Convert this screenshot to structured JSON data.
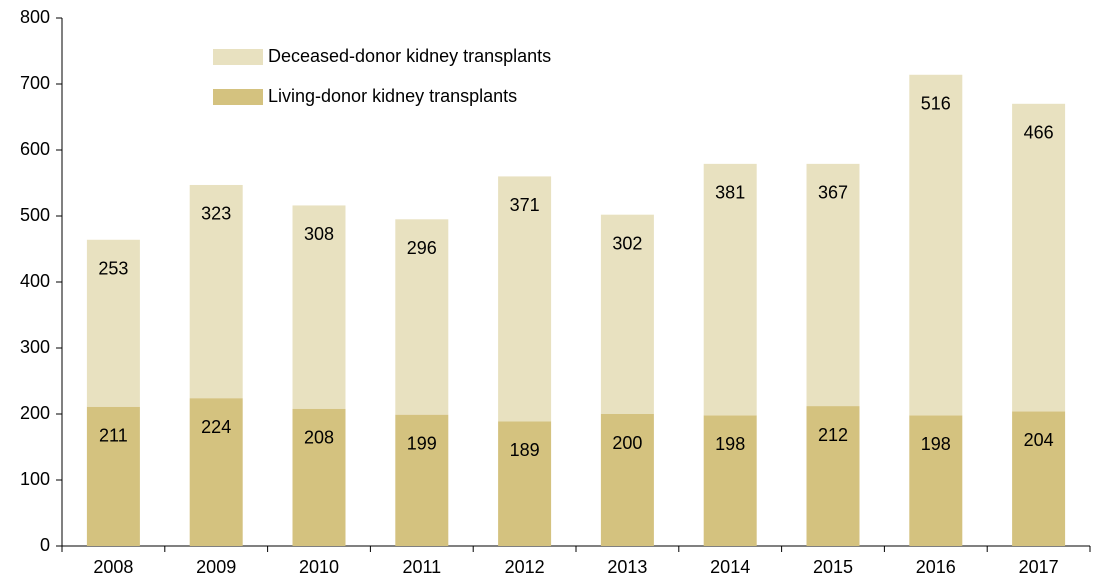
{
  "chart_data": {
    "type": "stacked_bar",
    "categories": [
      "2008",
      "2009",
      "2010",
      "2011",
      "2012",
      "2013",
      "2014",
      "2015",
      "2016",
      "2017"
    ],
    "series": [
      {
        "name": "Living-donor kidney transplants",
        "color": "#d4c27f",
        "values": [
          211,
          224,
          208,
          199,
          189,
          200,
          198,
          212,
          198,
          204
        ]
      },
      {
        "name": "Deceased-donor kidney transplants",
        "color": "#e8e1c0",
        "values": [
          253,
          323,
          308,
          296,
          371,
          302,
          381,
          367,
          516,
          466
        ]
      }
    ],
    "ylim": [
      0,
      800
    ],
    "yticks": [
      0,
      100,
      200,
      300,
      400,
      500,
      600,
      700,
      800
    ],
    "grid": false,
    "legend": "top-left"
  }
}
